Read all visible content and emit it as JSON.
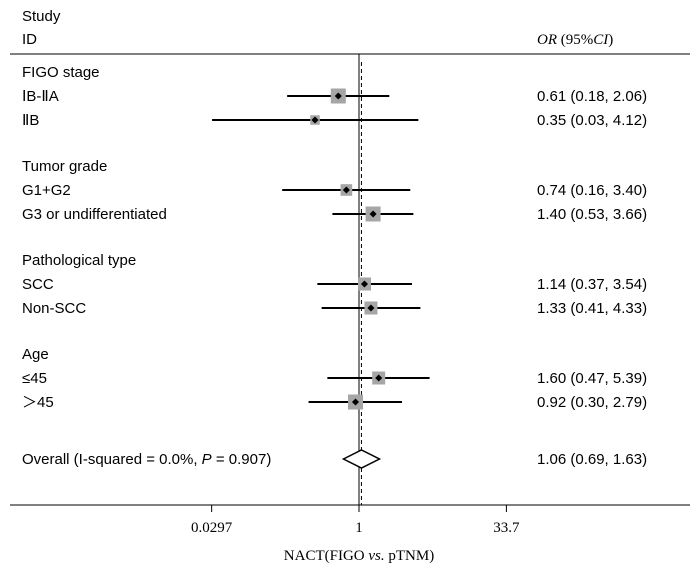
{
  "chart_data": {
    "type": "forest",
    "header": {
      "study_label_line1": "Study",
      "study_label_line2": "ID",
      "effect_label_italic": "OR",
      "effect_label_ci_open": " (95%",
      "effect_label_ci_italic": "CI",
      "effect_label_ci_close": ")"
    },
    "x_axis": {
      "scale": "log",
      "reference_value": 1,
      "overall_dashed_line_value": 1.06,
      "tick_labels": [
        "0.0297",
        "1",
        "33.7"
      ],
      "tick_values": [
        0.0297,
        1,
        33.7
      ],
      "xlabel_prefix": "NACT(FIGO ",
      "xlabel_italic": "vs.",
      "xlabel_suffix": " pTNM)"
    },
    "groups": [
      {
        "name": "FIGO stage",
        "rows": [
          {
            "label": "ⅠB-ⅡA",
            "or": 0.61,
            "lo": 0.18,
            "hi": 2.06,
            "ci_text": "0.61 (0.18, 2.06)",
            "weight": 1.0
          },
          {
            "label": "ⅡB",
            "or": 0.35,
            "lo": 0.03,
            "hi": 4.12,
            "ci_text": "0.35 (0.03, 4.12)",
            "weight": 0.4
          }
        ]
      },
      {
        "name": "Tumor grade",
        "rows": [
          {
            "label": "G1+G2",
            "or": 0.74,
            "lo": 0.16,
            "hi": 3.4,
            "ci_text": "0.74 (0.16, 3.40)",
            "weight": 0.6
          },
          {
            "label": "G3 or undifferentiated",
            "or": 1.4,
            "lo": 0.53,
            "hi": 3.66,
            "ci_text": "1.40 (0.53, 3.66)",
            "weight": 1.0
          }
        ]
      },
      {
        "name": "Pathological type",
        "rows": [
          {
            "label": "SCC",
            "or": 1.14,
            "lo": 0.37,
            "hi": 3.54,
            "ci_text": "1.14 (0.37, 3.54)",
            "weight": 0.75
          },
          {
            "label": "Non-SCC",
            "or": 1.33,
            "lo": 0.41,
            "hi": 4.33,
            "ci_text": "1.33 (0.41, 4.33)",
            "weight": 0.75
          }
        ]
      },
      {
        "name": "Age",
        "rows": [
          {
            "label": "≤45",
            "or": 1.6,
            "lo": 0.47,
            "hi": 5.39,
            "ci_text": "1.60 (0.47, 5.39)",
            "weight": 0.75
          },
          {
            "label": "＞45",
            "or": 0.92,
            "lo": 0.3,
            "hi": 2.79,
            "ci_text": "0.92 (0.30, 2.79)",
            "weight": 1.0
          }
        ]
      }
    ],
    "overall": {
      "label_prefix": "Overall  (I-squared = 0.0%, ",
      "label_italic": "P",
      "label_suffix": " = 0.907)",
      "or": 1.06,
      "lo": 0.69,
      "hi": 1.63,
      "ci_text": "1.06 (0.69, 1.63)"
    },
    "colors": {
      "box": "#a6a6a6",
      "line": "#000000"
    }
  }
}
